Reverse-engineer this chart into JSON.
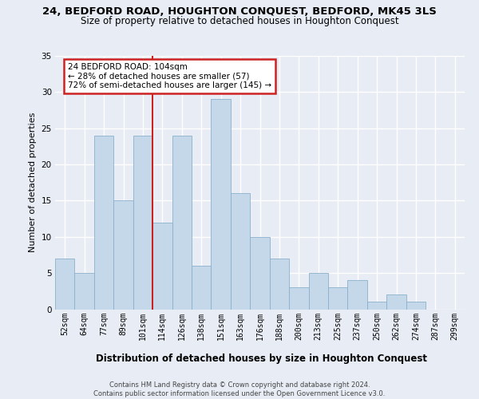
{
  "title": "24, BEDFORD ROAD, HOUGHTON CONQUEST, BEDFORD, MK45 3LS",
  "subtitle": "Size of property relative to detached houses in Houghton Conquest",
  "xlabel": "Distribution of detached houses by size in Houghton Conquest",
  "ylabel": "Number of detached properties",
  "categories": [
    "52sqm",
    "64sqm",
    "77sqm",
    "89sqm",
    "101sqm",
    "114sqm",
    "126sqm",
    "138sqm",
    "151sqm",
    "163sqm",
    "176sqm",
    "188sqm",
    "200sqm",
    "213sqm",
    "225sqm",
    "237sqm",
    "250sqm",
    "262sqm",
    "274sqm",
    "287sqm",
    "299sqm"
  ],
  "values": [
    7,
    5,
    24,
    15,
    24,
    12,
    24,
    6,
    29,
    16,
    10,
    7,
    3,
    5,
    3,
    4,
    1,
    2,
    1,
    0,
    0
  ],
  "bar_color": "#c5d8ea",
  "bar_edge_color": "#8ab0cc",
  "annotation_line1": "24 BEDFORD ROAD: 104sqm",
  "annotation_line2": "← 28% of detached houses are smaller (57)",
  "annotation_line3": "72% of semi-detached houses are larger (145) →",
  "annotation_box_facecolor": "#ffffff",
  "annotation_box_edgecolor": "#cc2222",
  "red_line_x": 4.5,
  "ylim": [
    0,
    35
  ],
  "yticks": [
    0,
    5,
    10,
    15,
    20,
    25,
    30,
    35
  ],
  "bg_color": "#e8edf5",
  "grid_color": "#ffffff",
  "title_fontsize": 9.5,
  "subtitle_fontsize": 8.5,
  "tick_fontsize": 7,
  "ylabel_fontsize": 8,
  "xlabel_fontsize": 8.5,
  "footer_line1": "Contains HM Land Registry data © Crown copyright and database right 2024.",
  "footer_line2": "Contains public sector information licensed under the Open Government Licence v3.0."
}
